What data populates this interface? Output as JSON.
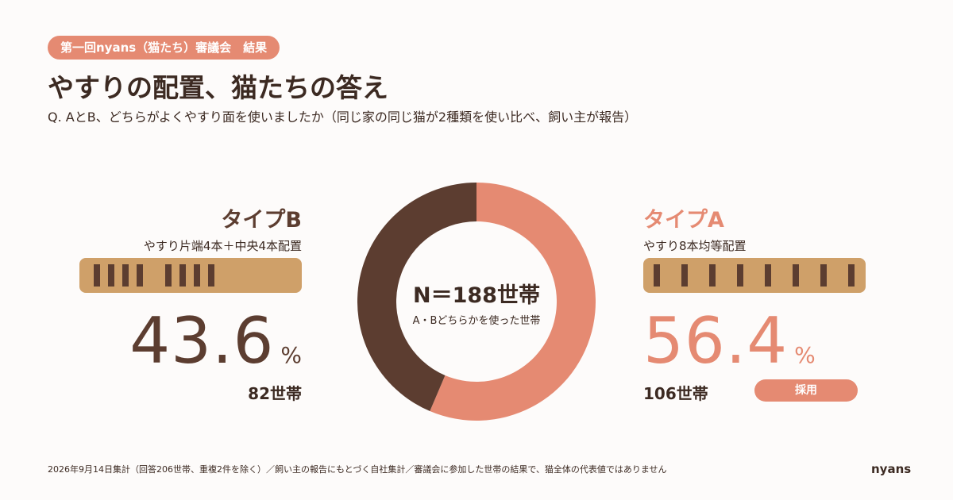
{
  "header": {
    "badge": "第一回nyans（猫たち）審議会　結果",
    "title": "やすりの配置、猫たちの答え",
    "subtitle": "Q. AとB、どちらがよくやすり面を使いましたか（同じ家の同じ猫が2種類を使い比べ、飼い主が報告）"
  },
  "type_b": {
    "name": "タイプB",
    "description": "やすり片端4本＋中央4本配置",
    "percent": "43.6",
    "percent_sign": "%",
    "count": "82世帯"
  },
  "type_a": {
    "name": "タイプA",
    "description": "やすり8本均等配置",
    "percent": "56.4",
    "percent_sign": "%",
    "count": "106世帯",
    "adopted_label": "採用"
  },
  "center": {
    "total": "N＝188世帯",
    "caption": "A・Bどちらかを使った世帯"
  },
  "footer": {
    "note": "2026年9月14日集計（回答206世帯、重複2件を除く）／飼い主の報告にもとづく自社集計／審議会に参加した世帯の結果で、猫全体の代表値ではありません",
    "logo": "nyans"
  },
  "colors": {
    "type_a": "#e58a72",
    "type_b": "#5c3d30",
    "accent": "#e58a72",
    "bar_background": "#cfa069",
    "rod": "#5c3d30"
  },
  "chart_data": {
    "type": "pie",
    "title": "",
    "categories": [
      "タイプA",
      "タイプB"
    ],
    "values": [
      56.4,
      43.6
    ],
    "counts": [
      106,
      82
    ],
    "total": 188,
    "donut": true,
    "start": "top, clockwise (タイプA first)"
  }
}
